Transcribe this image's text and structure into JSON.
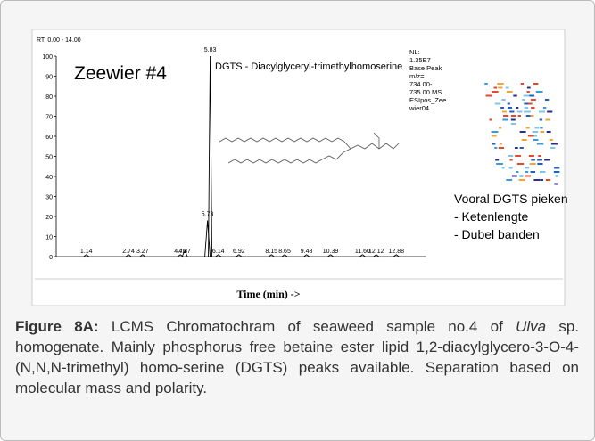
{
  "chart_data": {
    "type": "chromatogram",
    "range_label": "RT: 0.00 - 14.00",
    "title": "Zeewier #4",
    "compound": "DGTS - Diacylglyceryl-trimethylhomoserine",
    "nl_info": [
      "NL:",
      "1.35E7",
      "Base Peak",
      "m/z=",
      "734.00-",
      "735.00 MS",
      "ESIpos_Zee",
      "wier04"
    ],
    "notes": [
      "Vooral DGTS pieken",
      "- Ketenlengte",
      "- Dubel banden"
    ],
    "xlabel": "Time (min) ->",
    "xlim": [
      0,
      14
    ],
    "ylim": [
      0,
      100
    ],
    "yticks": [
      0,
      10,
      20,
      30,
      40,
      50,
      60,
      70,
      80,
      90,
      100
    ],
    "color": "#000000",
    "label_color": "#000000",
    "x": [
      1.14,
      2.74,
      3.27,
      4.7,
      4.87,
      5.73,
      5.83,
      6.14,
      6.92,
      8.15,
      8.65,
      9.48,
      10.39,
      11.6,
      12.12,
      12.88
    ],
    "values": [
      1,
      1,
      1,
      1,
      3,
      18,
      100,
      1,
      1,
      1,
      1,
      1,
      1,
      1,
      1,
      1
    ],
    "peak_labels": [
      "1.14",
      "2.74",
      "3.27",
      "4.70",
      "4.87",
      "5.73",
      "5.83",
      "6.14",
      "6.92",
      "8.15",
      "8.65",
      "9.48",
      "10.39",
      "11.60",
      "12.12",
      "12.88"
    ]
  },
  "caption": {
    "label": "Figure 8A:",
    "parts": [
      " LCMS Chromatochram of seaweed sample no.4 of ",
      "Ulva",
      " sp. homogenate. Mainly phosphorus free betaine ester lipid 1,2-diacylglycero-3-O-4-(N,N,N-trimethyl) homo-serine (DGTS) peaks available. Separation based on molecular mass and polarity."
    ]
  }
}
